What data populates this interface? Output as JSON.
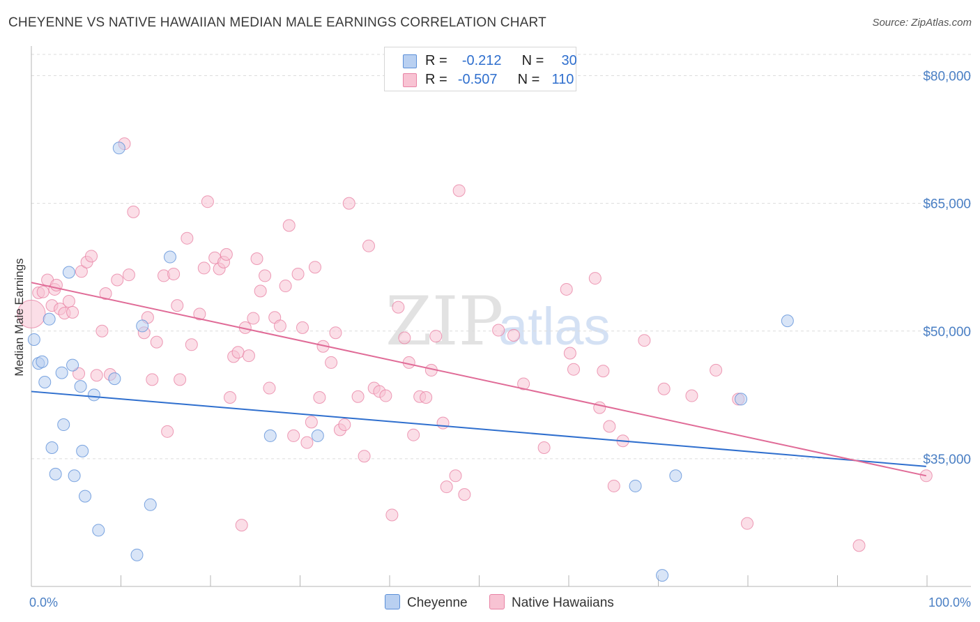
{
  "title": "CHEYENNE VS NATIVE HAWAIIAN MEDIAN MALE EARNINGS CORRELATION CHART",
  "source": "Source: ZipAtlas.com",
  "watermark": {
    "zip": "ZIP",
    "atlas": "atlas"
  },
  "colors": {
    "cheyenne_fill": "#b9d0f1",
    "cheyenne_stroke": "#5b8fd8",
    "cheyenne_line": "#2f6fce",
    "hawaiian_fill": "#f8c3d3",
    "hawaiian_stroke": "#e882a4",
    "hawaiian_line": "#e06b97",
    "grid": "#dcdcdc",
    "tick_text": "#4a7fc4"
  },
  "legend": {
    "rows": [
      {
        "r_label": "R =",
        "r_value": "-0.212",
        "n_label": "N =",
        "n_value": "30"
      },
      {
        "r_label": "R =",
        "r_value": "-0.507",
        "n_label": "N =",
        "n_value": "110"
      }
    ]
  },
  "bottom_legend": {
    "cheyenne": "Cheyenne",
    "hawaiian": "Native Hawaiians"
  },
  "chart_data": {
    "type": "scatter",
    "xlabel": "",
    "ylabel": "Median Male Earnings",
    "xlim": [
      0,
      105
    ],
    "ylim": [
      20000,
      82500
    ],
    "x_tick_labels": [
      "0.0%",
      "100.0%"
    ],
    "y_ticks": [
      35000,
      50000,
      65000,
      80000
    ],
    "y_tick_labels": [
      "$35,000",
      "$50,000",
      "$65,000",
      "$80,000"
    ],
    "series": [
      {
        "name": "Cheyenne",
        "trendline": {
          "x0": 0,
          "y0": 42900,
          "x1": 100,
          "y1": 34100
        },
        "points": [
          [
            0.3,
            49000
          ],
          [
            0.8,
            46200
          ],
          [
            1.2,
            46400
          ],
          [
            1.5,
            44000
          ],
          [
            2.0,
            51400
          ],
          [
            2.3,
            36300
          ],
          [
            2.7,
            33200
          ],
          [
            3.4,
            45100
          ],
          [
            3.6,
            39000
          ],
          [
            4.2,
            56900
          ],
          [
            4.6,
            46000
          ],
          [
            4.8,
            33000
          ],
          [
            5.5,
            43500
          ],
          [
            5.7,
            35900
          ],
          [
            6.0,
            30600
          ],
          [
            7.0,
            42500
          ],
          [
            7.5,
            26600
          ],
          [
            9.3,
            44400
          ],
          [
            9.8,
            71500
          ],
          [
            11.8,
            23700
          ],
          [
            12.4,
            50600
          ],
          [
            13.3,
            29600
          ],
          [
            15.5,
            58700
          ],
          [
            26.7,
            37700
          ],
          [
            32.0,
            37700
          ],
          [
            67.5,
            31800
          ],
          [
            70.5,
            21300
          ],
          [
            72.0,
            33000
          ],
          [
            79.3,
            42000
          ],
          [
            84.5,
            51200
          ]
        ]
      },
      {
        "name": "Native Hawaiians",
        "trendline": {
          "x0": 0,
          "y0": 55700,
          "x1": 100,
          "y1": 33000
        },
        "points": [
          [
            0.0,
            52000
          ],
          [
            0.8,
            54500
          ],
          [
            1.3,
            54600
          ],
          [
            1.8,
            56000
          ],
          [
            2.3,
            53000
          ],
          [
            2.6,
            54900
          ],
          [
            2.8,
            55400
          ],
          [
            3.2,
            52600
          ],
          [
            3.7,
            52100
          ],
          [
            4.2,
            53500
          ],
          [
            4.6,
            52200
          ],
          [
            5.3,
            45000
          ],
          [
            5.6,
            57000
          ],
          [
            6.2,
            58100
          ],
          [
            6.7,
            58800
          ],
          [
            7.3,
            44800
          ],
          [
            7.9,
            50000
          ],
          [
            8.3,
            54400
          ],
          [
            8.8,
            44900
          ],
          [
            9.6,
            56000
          ],
          [
            10.4,
            72000
          ],
          [
            10.9,
            56600
          ],
          [
            11.4,
            64000
          ],
          [
            12.6,
            49800
          ],
          [
            13.0,
            51600
          ],
          [
            13.5,
            44300
          ],
          [
            14.0,
            48700
          ],
          [
            14.8,
            56500
          ],
          [
            15.2,
            38200
          ],
          [
            15.9,
            56700
          ],
          [
            16.3,
            53000
          ],
          [
            16.6,
            44300
          ],
          [
            17.4,
            60900
          ],
          [
            17.9,
            48400
          ],
          [
            18.8,
            52000
          ],
          [
            19.3,
            57400
          ],
          [
            19.7,
            65200
          ],
          [
            20.5,
            58600
          ],
          [
            21.0,
            57300
          ],
          [
            21.5,
            58100
          ],
          [
            21.8,
            59000
          ],
          [
            22.2,
            42200
          ],
          [
            22.6,
            47000
          ],
          [
            23.1,
            47500
          ],
          [
            23.5,
            27200
          ],
          [
            23.9,
            50400
          ],
          [
            24.3,
            47100
          ],
          [
            24.8,
            51500
          ],
          [
            25.2,
            58500
          ],
          [
            25.6,
            54700
          ],
          [
            26.1,
            56500
          ],
          [
            26.6,
            43300
          ],
          [
            27.2,
            51600
          ],
          [
            27.8,
            50600
          ],
          [
            28.4,
            55300
          ],
          [
            28.8,
            62400
          ],
          [
            29.3,
            37700
          ],
          [
            29.8,
            56700
          ],
          [
            30.3,
            50400
          ],
          [
            30.8,
            36900
          ],
          [
            31.3,
            39300
          ],
          [
            31.7,
            57500
          ],
          [
            32.2,
            42200
          ],
          [
            32.6,
            48200
          ],
          [
            33.5,
            46300
          ],
          [
            34.0,
            49800
          ],
          [
            34.5,
            38400
          ],
          [
            35.0,
            39000
          ],
          [
            35.5,
            65000
          ],
          [
            36.5,
            42300
          ],
          [
            37.2,
            35300
          ],
          [
            37.7,
            60000
          ],
          [
            38.3,
            43300
          ],
          [
            38.9,
            42900
          ],
          [
            39.6,
            42400
          ],
          [
            40.3,
            28400
          ],
          [
            41.0,
            52800
          ],
          [
            41.7,
            49200
          ],
          [
            42.2,
            46300
          ],
          [
            42.7,
            37800
          ],
          [
            43.4,
            42300
          ],
          [
            44.1,
            42200
          ],
          [
            44.7,
            45400
          ],
          [
            45.2,
            49400
          ],
          [
            46.0,
            39200
          ],
          [
            46.4,
            31700
          ],
          [
            47.4,
            33000
          ],
          [
            47.8,
            66500
          ],
          [
            48.4,
            30800
          ],
          [
            52.2,
            50100
          ],
          [
            53.9,
            49500
          ],
          [
            55.0,
            43800
          ],
          [
            57.3,
            36300
          ],
          [
            59.8,
            54900
          ],
          [
            60.2,
            47400
          ],
          [
            60.6,
            45500
          ],
          [
            63.0,
            56200
          ],
          [
            63.5,
            41000
          ],
          [
            63.9,
            45300
          ],
          [
            64.6,
            38800
          ],
          [
            65.1,
            31800
          ],
          [
            66.1,
            37100
          ],
          [
            68.5,
            48900
          ],
          [
            70.7,
            43200
          ],
          [
            73.8,
            42400
          ],
          [
            76.5,
            45400
          ],
          [
            79.0,
            42000
          ],
          [
            80.0,
            27400
          ],
          [
            92.5,
            24800
          ],
          [
            100.0,
            33000
          ]
        ]
      }
    ]
  }
}
